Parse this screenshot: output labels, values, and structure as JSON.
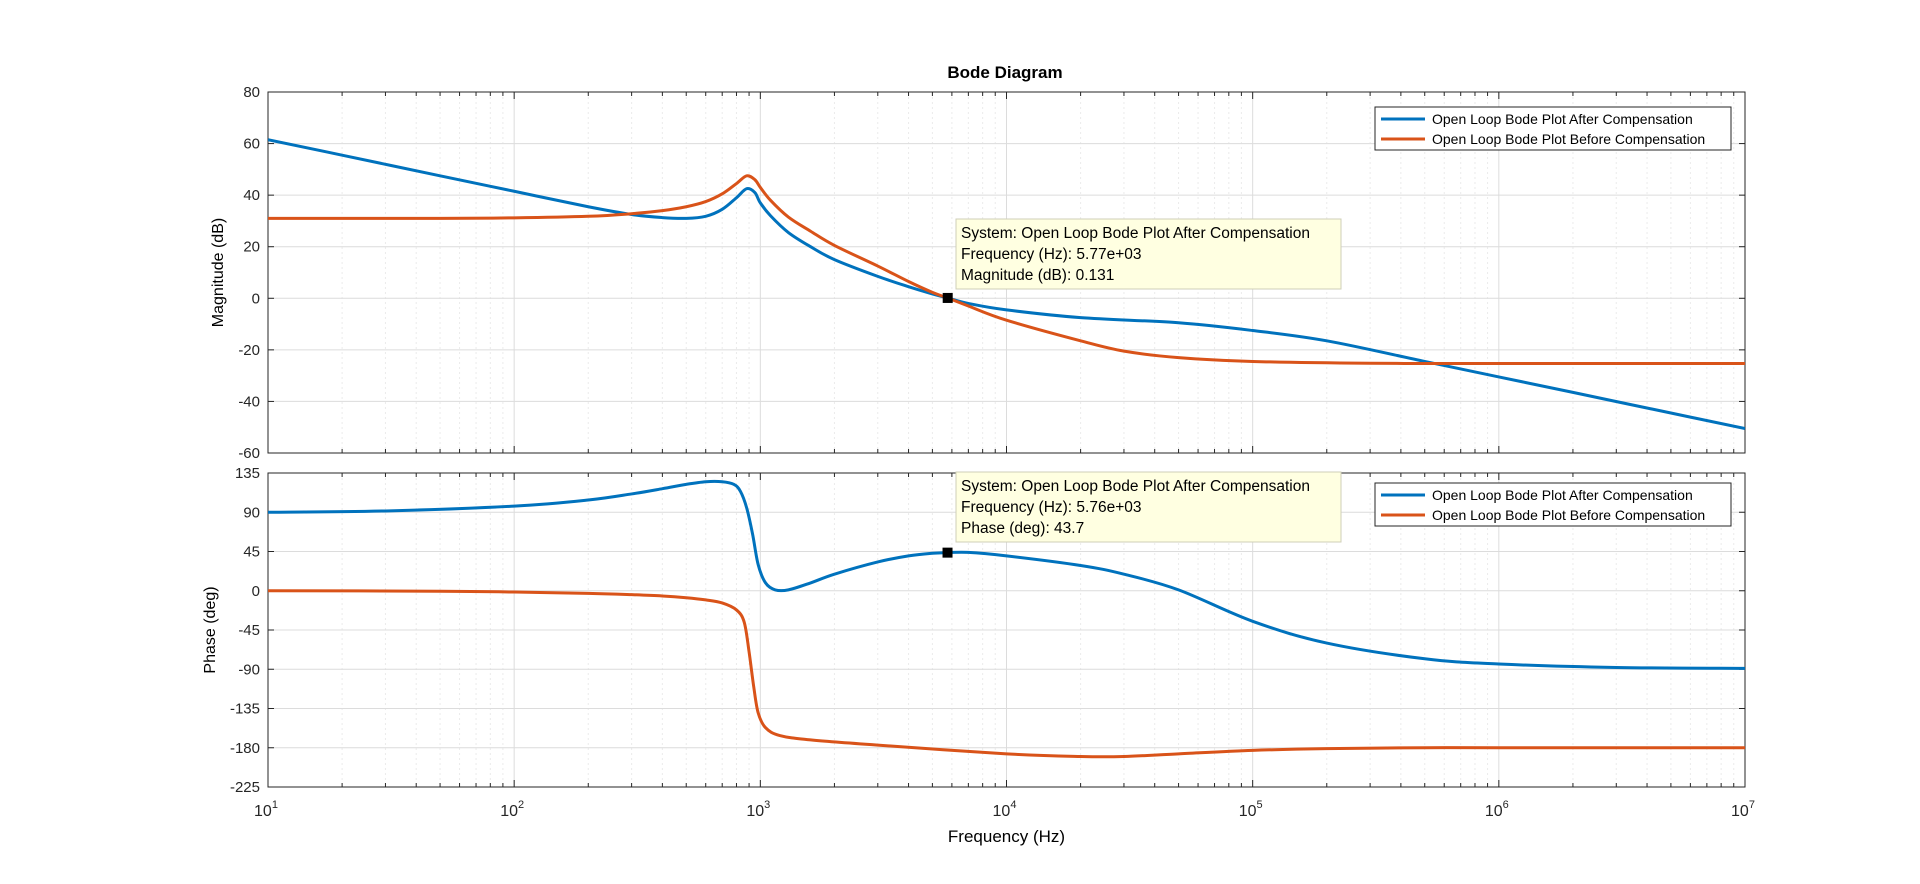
{
  "figure_title": "Bode Diagram",
  "colors": {
    "after": "#0072BD",
    "before": "#D95319",
    "grid": "#dcdcdc",
    "axis": "#262626",
    "datatip_bg": "#ffffe1"
  },
  "chart_data": [
    {
      "type": "line",
      "panel": "magnitude",
      "ylabel": "Magnitude (dB)",
      "xscale": "log",
      "xlim": [
        10,
        10000000
      ],
      "ylim": [
        -60,
        80
      ],
      "yticks": [
        80,
        60,
        40,
        20,
        0,
        -20,
        -40,
        -60
      ],
      "ytick_labels": [
        "80",
        "60",
        "40",
        "20",
        "0",
        "-20",
        "-40",
        "-60"
      ],
      "grid": true,
      "legend_position": "top-right",
      "series": [
        {
          "name": "Open Loop Bode Plot After Compensation",
          "color": "#0072BD",
          "points": [
            [
              10,
              61.5
            ],
            [
              20,
              55.5
            ],
            [
              50,
              47.5
            ],
            [
              100,
              41.5
            ],
            [
              200,
              35.5
            ],
            [
              300,
              32.5
            ],
            [
              400,
              31.3
            ],
            [
              500,
              31
            ],
            [
              600,
              31.8
            ],
            [
              700,
              34.5
            ],
            [
              800,
              39
            ],
            [
              880,
              42.5
            ],
            [
              950,
              41
            ],
            [
              1000,
              37
            ],
            [
              1100,
              32
            ],
            [
              1300,
              25.5
            ],
            [
              1600,
              20
            ],
            [
              2000,
              15
            ],
            [
              3000,
              8.5
            ],
            [
              4000,
              4.5
            ],
            [
              5000,
              1.7
            ],
            [
              5770,
              0.131
            ],
            [
              7000,
              -2
            ],
            [
              10000,
              -4.5
            ],
            [
              20000,
              -7.5
            ],
            [
              50000,
              -9.5
            ],
            [
              100000,
              -12.5
            ],
            [
              200000,
              -16.5
            ],
            [
              500000,
              -24.5
            ],
            [
              1000000,
              -30.5
            ],
            [
              2000000,
              -36.5
            ],
            [
              5000000,
              -44.5
            ],
            [
              10000000,
              -50.5
            ]
          ]
        },
        {
          "name": "Open Loop Bode Plot Before Compensation",
          "color": "#D95319",
          "points": [
            [
              10,
              31
            ],
            [
              50,
              31
            ],
            [
              100,
              31.2
            ],
            [
              200,
              31.8
            ],
            [
              300,
              32.8
            ],
            [
              400,
              34
            ],
            [
              500,
              35.5
            ],
            [
              600,
              37.5
            ],
            [
              700,
              40.5
            ],
            [
              800,
              44.5
            ],
            [
              880,
              47.5
            ],
            [
              950,
              46
            ],
            [
              1000,
              43
            ],
            [
              1100,
              38
            ],
            [
              1300,
              31.5
            ],
            [
              1600,
              26
            ],
            [
              2000,
              20.5
            ],
            [
              3000,
              12.5
            ],
            [
              4000,
              6.5
            ],
            [
              5000,
              2.3
            ],
            [
              5770,
              0.1
            ],
            [
              7000,
              -3
            ],
            [
              10000,
              -8.5
            ],
            [
              20000,
              -16.5
            ],
            [
              30000,
              -20.5
            ],
            [
              50000,
              -23
            ],
            [
              100000,
              -24.5
            ],
            [
              300000,
              -25.2
            ],
            [
              1000000,
              -25.3
            ],
            [
              10000000,
              -25.3
            ]
          ]
        }
      ],
      "datatip": {
        "lines": [
          "System: Open Loop Bode Plot After Compensation",
          "Frequency (Hz): 5.77e+03",
          "Magnitude (dB): 0.131"
        ],
        "x": 5770,
        "y": 0.131
      }
    },
    {
      "type": "line",
      "panel": "phase",
      "ylabel": "Phase (deg)",
      "xlabel": "Frequency  (Hz)",
      "xscale": "log",
      "xlim": [
        10,
        10000000
      ],
      "ylim": [
        -225,
        135
      ],
      "yticks": [
        135,
        90,
        45,
        0,
        -45,
        -90,
        -135,
        -180,
        -225
      ],
      "ytick_labels": [
        "135",
        "90",
        "45",
        "0",
        "-45",
        "-90",
        "-135",
        "-180",
        "-225"
      ],
      "xticks": [
        10,
        100,
        1000,
        10000,
        100000,
        1000000,
        10000000
      ],
      "xtick_labels": [
        {
          "base": "10",
          "exp": "1"
        },
        {
          "base": "10",
          "exp": "2"
        },
        {
          "base": "10",
          "exp": "3"
        },
        {
          "base": "10",
          "exp": "4"
        },
        {
          "base": "10",
          "exp": "5"
        },
        {
          "base": "10",
          "exp": "6"
        },
        {
          "base": "10",
          "exp": "7"
        }
      ],
      "grid": true,
      "legend_position": "top-right",
      "series": [
        {
          "name": "Open Loop Bode Plot After Compensation",
          "color": "#0072BD",
          "points": [
            [
              10,
              90
            ],
            [
              30,
              91.5
            ],
            [
              100,
              97
            ],
            [
              200,
              104
            ],
            [
              300,
              111
            ],
            [
              400,
              117
            ],
            [
              500,
              122
            ],
            [
              600,
              125
            ],
            [
              700,
              125
            ],
            [
              780,
              122
            ],
            [
              830,
              114
            ],
            [
              880,
              95
            ],
            [
              930,
              65
            ],
            [
              980,
              30
            ],
            [
              1050,
              9
            ],
            [
              1150,
              1
            ],
            [
              1300,
              1
            ],
            [
              1600,
              9
            ],
            [
              2000,
              19
            ],
            [
              3000,
              33
            ],
            [
              4000,
              40
            ],
            [
              5000,
              43
            ],
            [
              5760,
              43.7
            ],
            [
              7000,
              44
            ],
            [
              10000,
              40
            ],
            [
              20000,
              29
            ],
            [
              30000,
              19
            ],
            [
              50000,
              1
            ],
            [
              100000,
              -35
            ],
            [
              200000,
              -60
            ],
            [
              500000,
              -78
            ],
            [
              1000000,
              -84
            ],
            [
              3000000,
              -88
            ],
            [
              10000000,
              -89
            ]
          ]
        },
        {
          "name": "Open Loop Bode Plot Before Compensation",
          "color": "#D95319",
          "points": [
            [
              10,
              0
            ],
            [
              50,
              -0.5
            ],
            [
              100,
              -1.5
            ],
            [
              200,
              -3
            ],
            [
              300,
              -4.5
            ],
            [
              400,
              -6
            ],
            [
              500,
              -8
            ],
            [
              600,
              -10.5
            ],
            [
              700,
              -14
            ],
            [
              800,
              -22
            ],
            [
              860,
              -36
            ],
            [
              900,
              -70
            ],
            [
              940,
              -110
            ],
            [
              980,
              -140
            ],
            [
              1050,
              -157
            ],
            [
              1200,
              -166
            ],
            [
              1600,
              -171
            ],
            [
              3000,
              -177
            ],
            [
              10000,
              -187
            ],
            [
              20000,
              -190
            ],
            [
              30000,
              -190
            ],
            [
              50000,
              -187
            ],
            [
              100000,
              -183
            ],
            [
              200000,
              -181
            ],
            [
              500000,
              -180
            ],
            [
              1000000,
              -180
            ],
            [
              10000000,
              -180
            ]
          ]
        }
      ],
      "datatip": {
        "lines": [
          "System: Open Loop Bode Plot After Compensation",
          "Frequency (Hz): 5.76e+03",
          "Phase (deg): 43.7"
        ],
        "x": 5760,
        "y": 43.7
      }
    }
  ]
}
